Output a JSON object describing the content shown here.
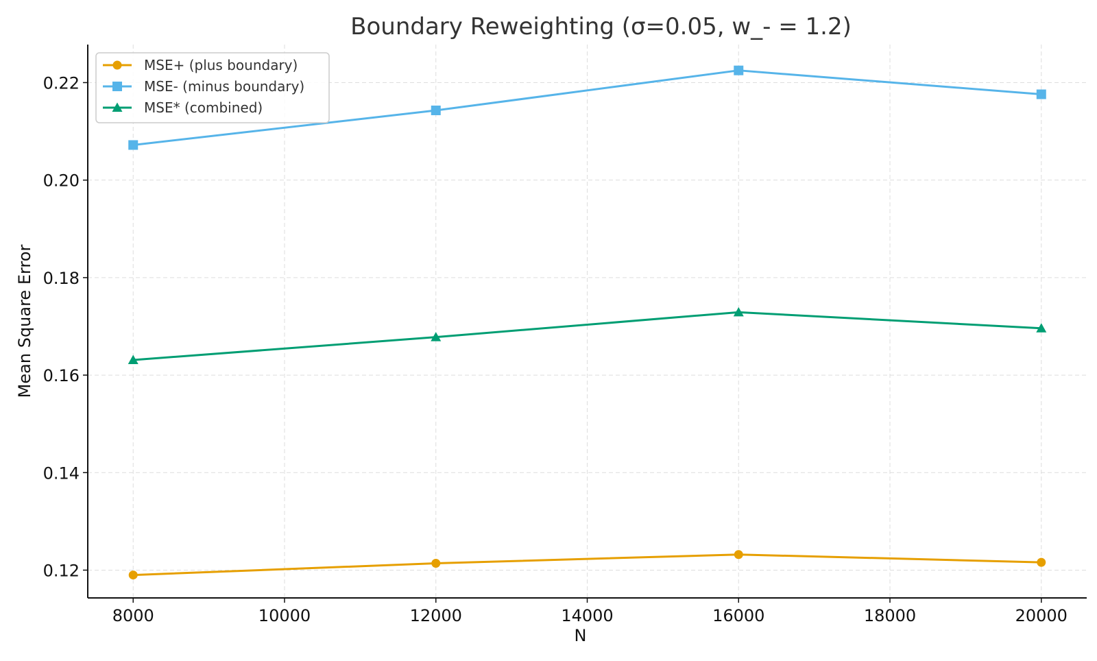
{
  "chart_data": {
    "type": "line",
    "title": "Boundary Reweighting (σ=0.05, w_- = 1.2)",
    "xlabel": "N",
    "ylabel": "Mean Square Error",
    "x": [
      8000,
      12000,
      16000,
      20000
    ],
    "xlim": [
      7400,
      20600
    ],
    "ylim": [
      0.1143,
      0.2278
    ],
    "xticks": [
      8000,
      10000,
      12000,
      14000,
      16000,
      18000,
      20000
    ],
    "xtick_labels": [
      "8000",
      "10000",
      "12000",
      "14000",
      "16000",
      "18000",
      "20000"
    ],
    "yticks": [
      0.12,
      0.14,
      0.16,
      0.18,
      0.2,
      0.22
    ],
    "ytick_labels": [
      "0.12",
      "0.14",
      "0.16",
      "0.18",
      "0.20",
      "0.22"
    ],
    "grid": true,
    "legend_position": "top-left",
    "series": [
      {
        "name": "MSE+ (plus boundary)",
        "values": [
          0.119,
          0.1214,
          0.1232,
          0.1216
        ],
        "color": "#E69F00",
        "marker": "circle"
      },
      {
        "name": "MSE- (minus boundary)",
        "values": [
          0.2072,
          0.2143,
          0.2225,
          0.2176
        ],
        "color": "#56B4E9",
        "marker": "square"
      },
      {
        "name": "MSE* (combined)",
        "values": [
          0.1631,
          0.1678,
          0.1729,
          0.1696
        ],
        "color": "#009E73",
        "marker": "triangle"
      }
    ]
  }
}
